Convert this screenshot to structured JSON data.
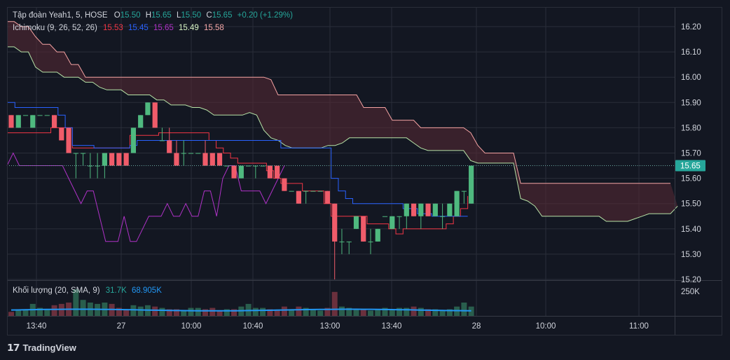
{
  "header": {
    "symbol": "Tập đoàn Yeah1, 5, HOSE",
    "o_label": "O",
    "o_value": "15.50",
    "h_label": "H",
    "h_value": "15.65",
    "l_label": "L",
    "l_value": "15.50",
    "c_label": "C",
    "c_value": "15.65",
    "change": "+0.20 (+1.29%)"
  },
  "ichimoku_legend": {
    "label": "Ichimoku (9, 26, 52, 26)",
    "values": [
      "15.53",
      "15.45",
      "15.65",
      "15.49",
      "15.58"
    ],
    "colors": [
      "#f23645",
      "#2962ff",
      "#9c27b0",
      "#d7f5c4",
      "#f7a9a9"
    ]
  },
  "volume_legend": {
    "label": "Khối lượng (20, SMA, 9)",
    "value1": "31.7K",
    "value2": "68.905K"
  },
  "price_badge": "15.65",
  "brand": "TradingView",
  "colors": {
    "up": "#26a69a",
    "down": "#ef5350",
    "upCandle": "#4fb97f",
    "downCandle": "#f05c6a",
    "conversion": "#f23645",
    "base": "#2962ff",
    "lagging": "#b032c8",
    "spanA": "#b7e3a7",
    "spanB": "#f5a3a3",
    "cloud": "#5a2a34"
  },
  "chart_data": {
    "type": "candlestick",
    "y_axis": {
      "ticks": [
        "16.20",
        "16.10",
        "16.00",
        "15.90",
        "15.80",
        "15.70",
        "15.60",
        "15.50",
        "15.40",
        "15.30",
        "15.20"
      ],
      "range": [
        15.2,
        16.25
      ]
    },
    "volume_axis": {
      "ticks": [
        "250K"
      ]
    },
    "x_axis": {
      "ticks": [
        "13:40",
        "27",
        "10:00",
        "10:40",
        "13:00",
        "13:40",
        "28",
        "10:00",
        "11:00"
      ]
    },
    "candles": [
      [
        15.85,
        15.85,
        15.8,
        15.8
      ],
      [
        15.8,
        15.85,
        15.8,
        15.85
      ],
      [
        15.85,
        15.85,
        15.85,
        15.85
      ],
      [
        15.8,
        15.85,
        15.8,
        15.85
      ],
      [
        15.85,
        15.85,
        15.85,
        15.85
      ],
      [
        15.85,
        15.85,
        15.85,
        15.85
      ],
      [
        15.85,
        15.85,
        15.8,
        15.8
      ],
      [
        15.8,
        15.8,
        15.75,
        15.75
      ],
      [
        15.8,
        15.8,
        15.7,
        15.7
      ],
      [
        15.7,
        15.7,
        15.6,
        15.7
      ],
      [
        15.7,
        15.7,
        15.65,
        15.7
      ],
      [
        15.65,
        15.7,
        15.6,
        15.65
      ],
      [
        15.65,
        15.7,
        15.6,
        15.65
      ],
      [
        15.65,
        15.7,
        15.6,
        15.7
      ],
      [
        15.7,
        15.7,
        15.65,
        15.65
      ],
      [
        15.7,
        15.7,
        15.65,
        15.65
      ],
      [
        15.7,
        15.7,
        15.65,
        15.65
      ],
      [
        15.7,
        15.8,
        15.7,
        15.8
      ],
      [
        15.8,
        15.85,
        15.8,
        15.85
      ],
      [
        15.85,
        15.9,
        15.85,
        15.9
      ],
      [
        15.9,
        15.9,
        15.8,
        15.8
      ],
      [
        15.75,
        15.8,
        15.75,
        15.75
      ],
      [
        15.75,
        15.8,
        15.7,
        15.7
      ],
      [
        15.7,
        15.75,
        15.65,
        15.65
      ],
      [
        15.7,
        15.75,
        15.65,
        15.7
      ],
      [
        15.7,
        15.7,
        15.7,
        15.7
      ],
      [
        15.7,
        15.7,
        15.7,
        15.7
      ],
      [
        15.7,
        15.75,
        15.65,
        15.65
      ],
      [
        15.7,
        15.7,
        15.65,
        15.65
      ],
      [
        15.7,
        15.7,
        15.65,
        15.65
      ],
      [
        15.65,
        15.65,
        15.65,
        15.65
      ],
      [
        15.65,
        15.65,
        15.6,
        15.6
      ],
      [
        15.6,
        15.65,
        15.6,
        15.65
      ],
      [
        15.65,
        15.65,
        15.65,
        15.65
      ],
      [
        15.65,
        15.65,
        15.6,
        15.65
      ],
      [
        15.65,
        15.65,
        15.65,
        15.65
      ],
      [
        15.65,
        15.65,
        15.6,
        15.6
      ],
      [
        15.65,
        15.65,
        15.6,
        15.6
      ],
      [
        15.6,
        15.6,
        15.55,
        15.55
      ],
      [
        15.55,
        15.55,
        15.55,
        15.55
      ],
      [
        15.55,
        15.55,
        15.5,
        15.5
      ],
      [
        15.55,
        15.55,
        15.5,
        15.55
      ],
      [
        15.55,
        15.55,
        15.55,
        15.55
      ],
      [
        15.55,
        15.55,
        15.55,
        15.55
      ],
      [
        15.55,
        15.55,
        15.5,
        15.5
      ],
      [
        15.5,
        15.5,
        15.2,
        15.35
      ],
      [
        15.35,
        15.4,
        15.3,
        15.35
      ],
      [
        15.35,
        15.35,
        15.3,
        15.35
      ],
      [
        15.4,
        15.45,
        15.4,
        15.45
      ],
      [
        15.45,
        15.45,
        15.35,
        15.35
      ],
      [
        15.35,
        15.4,
        15.3,
        15.35
      ],
      [
        15.35,
        15.4,
        15.35,
        15.4
      ],
      [
        15.45,
        15.45,
        15.45,
        15.45
      ],
      [
        15.4,
        15.45,
        15.4,
        15.45
      ],
      [
        15.45,
        15.45,
        15.4,
        15.45
      ],
      [
        15.45,
        15.5,
        15.4,
        15.5
      ],
      [
        15.5,
        15.5,
        15.45,
        15.45
      ],
      [
        15.45,
        15.5,
        15.4,
        15.5
      ],
      [
        15.5,
        15.5,
        15.45,
        15.45
      ],
      [
        15.45,
        15.5,
        15.45,
        15.5
      ],
      [
        15.45,
        15.5,
        15.4,
        15.45
      ],
      [
        15.45,
        15.5,
        15.45,
        15.5
      ],
      [
        15.45,
        15.55,
        15.45,
        15.55
      ],
      [
        15.55,
        15.55,
        15.5,
        15.55
      ],
      [
        15.5,
        15.65,
        15.5,
        15.65
      ]
    ],
    "volumes": [
      0.15,
      0.2,
      0.25,
      0.45,
      0.3,
      0.25,
      0.4,
      0.45,
      0.5,
      1.0,
      0.6,
      0.5,
      0.45,
      0.5,
      0.45,
      0.3,
      0.25,
      0.4,
      0.35,
      0.4,
      0.35,
      0.3,
      0.25,
      0.25,
      0.2,
      0.3,
      0.3,
      0.25,
      0.3,
      0.2,
      0.25,
      0.25,
      0.35,
      0.45,
      0.3,
      0.3,
      0.25,
      0.2,
      0.35,
      0.25,
      0.35,
      0.3,
      0.25,
      0.2,
      0.3,
      0.9,
      0.35,
      0.3,
      0.25,
      0.25,
      0.2,
      0.25,
      0.3,
      0.25,
      0.3,
      0.3,
      0.35,
      0.3,
      0.25,
      0.25,
      0.2,
      0.25,
      0.35,
      0.5,
      0.35
    ]
  }
}
